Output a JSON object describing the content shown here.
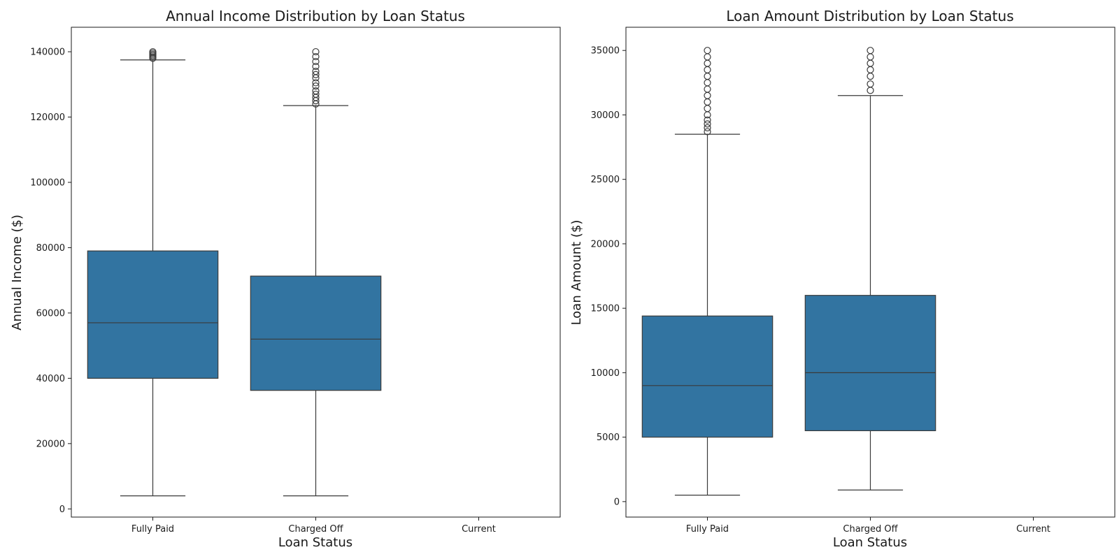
{
  "chart_data": [
    {
      "type": "box",
      "title": "Annual Income Distribution by Loan Status",
      "xlabel": "Loan Status",
      "ylabel": "Annual Income ($)",
      "categories": [
        "Fully Paid",
        "Charged Off",
        "Current"
      ],
      "ylim": [
        -2500,
        147500
      ],
      "yticks": [
        0,
        20000,
        40000,
        60000,
        80000,
        100000,
        120000,
        140000
      ],
      "box_color": "#3274a1",
      "boxes": [
        {
          "category": "Fully Paid",
          "whisker_low": 4000,
          "q1": 40000,
          "median": 57000,
          "q3": 79000,
          "whisker_high": 137500,
          "outliers": [
            138000,
            138400,
            138800,
            139200,
            139600,
            140000
          ]
        },
        {
          "category": "Charged Off",
          "whisker_low": 4000,
          "q1": 36300,
          "median": 52000,
          "q3": 71300,
          "whisker_high": 123500,
          "outliers": [
            124000,
            125000,
            126000,
            127000,
            128000,
            129500,
            130500,
            132000,
            133000,
            134000,
            135500,
            137000,
            138500,
            140000
          ]
        },
        {
          "category": "Current",
          "empty": true
        }
      ]
    },
    {
      "type": "box",
      "title": "Loan Amount Distribution by Loan Status",
      "xlabel": "Loan Status",
      "ylabel": "Loan Amount ($)",
      "categories": [
        "Fully Paid",
        "Charged Off",
        "Current"
      ],
      "ylim": [
        -1200,
        36800
      ],
      "yticks": [
        0,
        5000,
        10000,
        15000,
        20000,
        25000,
        30000,
        35000
      ],
      "box_color": "#3274a1",
      "boxes": [
        {
          "category": "Fully Paid",
          "whisker_low": 500,
          "q1": 5000,
          "median": 9000,
          "q3": 14400,
          "whisker_high": 28500,
          "outliers": [
            28700,
            29000,
            29300,
            29600,
            30000,
            30500,
            31000,
            31500,
            32000,
            32500,
            33000,
            33500,
            34000,
            34500,
            35000
          ]
        },
        {
          "category": "Charged Off",
          "whisker_low": 900,
          "q1": 5500,
          "median": 10000,
          "q3": 16000,
          "whisker_high": 31500,
          "outliers": [
            31900,
            32400,
            33000,
            33500,
            34000,
            34500,
            35000
          ]
        },
        {
          "category": "Current",
          "empty": true
        }
      ]
    }
  ]
}
